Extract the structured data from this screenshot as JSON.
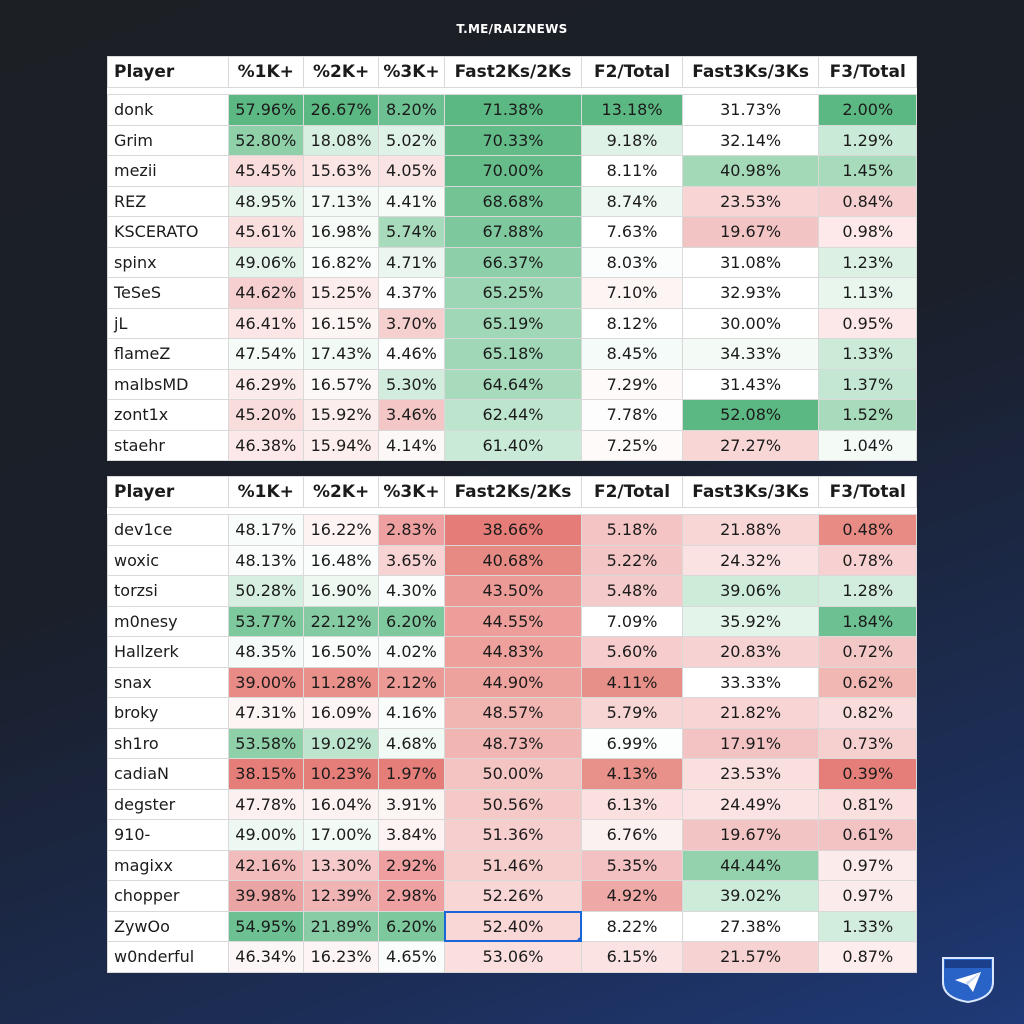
{
  "brand": "T.ME/RAIZNEWS",
  "columns": [
    "Player",
    "%1K+",
    "%2K+",
    "%3K+",
    "Fast2Ks/2Ks",
    "F2/Total",
    "Fast3Ks/3Ks",
    "F3/Total"
  ],
  "top_table": [
    [
      "donk",
      "57.96%",
      "26.67%",
      "8.20%",
      "71.38%",
      "13.18%",
      "31.73%",
      "2.00%"
    ],
    [
      "Grim",
      "52.80%",
      "18.08%",
      "5.02%",
      "70.33%",
      "9.18%",
      "32.14%",
      "1.29%"
    ],
    [
      "mezii",
      "45.45%",
      "15.63%",
      "4.05%",
      "70.00%",
      "8.11%",
      "40.98%",
      "1.45%"
    ],
    [
      "REZ",
      "48.95%",
      "17.13%",
      "4.41%",
      "68.68%",
      "8.74%",
      "23.53%",
      "0.84%"
    ],
    [
      "KSCERATO",
      "45.61%",
      "16.98%",
      "5.74%",
      "67.88%",
      "7.63%",
      "19.67%",
      "0.98%"
    ],
    [
      "spinx",
      "49.06%",
      "16.82%",
      "4.71%",
      "66.37%",
      "8.03%",
      "31.08%",
      "1.23%"
    ],
    [
      "TeSeS",
      "44.62%",
      "15.25%",
      "4.37%",
      "65.25%",
      "7.10%",
      "32.93%",
      "1.13%"
    ],
    [
      "jL",
      "46.41%",
      "16.15%",
      "3.70%",
      "65.19%",
      "8.12%",
      "30.00%",
      "0.95%"
    ],
    [
      "flameZ",
      "47.54%",
      "17.43%",
      "4.46%",
      "65.18%",
      "8.45%",
      "34.33%",
      "1.33%"
    ],
    [
      "malbsMD",
      "46.29%",
      "16.57%",
      "5.30%",
      "64.64%",
      "7.29%",
      "31.43%",
      "1.37%"
    ],
    [
      "zont1x",
      "45.20%",
      "15.92%",
      "3.46%",
      "62.44%",
      "7.78%",
      "52.08%",
      "1.52%"
    ],
    [
      "staehr",
      "46.38%",
      "15.94%",
      "4.14%",
      "61.40%",
      "7.25%",
      "27.27%",
      "1.04%"
    ]
  ],
  "top_colors": [
    [
      "#fff",
      "#5cb883",
      "#5cb883",
      "#6cc091",
      "#5cb883",
      "#5cb883",
      "#ffffff",
      "#5cb883"
    ],
    [
      "#fff",
      "#8fd0a9",
      "#d6efe0",
      "#dff2e7",
      "#63bb88",
      "#dff2e7",
      "#ffffff",
      "#c9ead6"
    ],
    [
      "#fff",
      "#f9dcdc",
      "#fbe5e5",
      "#fae3e3",
      "#66bd8a",
      "#ffffff",
      "#a4d9b8",
      "#a8dbbb"
    ],
    [
      "#fff",
      "#e7f5ec",
      "#f4fbf7",
      "#f6fbf8",
      "#74c395",
      "#eef8f2",
      "#f8d4d4",
      "#f6d0d0"
    ],
    [
      "#fff",
      "#fadfdf",
      "#f6fbf8",
      "#a8dbbb",
      "#7ec89e",
      "#ffffff",
      "#f3c4c4",
      "#fde9e9"
    ],
    [
      "#fff",
      "#e5f4eb",
      "#fafdfb",
      "#eaf6ef",
      "#8ccfa8",
      "#fbfdfc",
      "#ffffff",
      "#dcf1e4"
    ],
    [
      "#fff",
      "#f6d0d0",
      "#fcecec",
      "#fdfefd",
      "#9dd6b4",
      "#fdf4f4",
      "#ffffff",
      "#e8f6ee"
    ],
    [
      "#fff",
      "#fbe5e5",
      "#fdf4f4",
      "#f6cfcf",
      "#a0d7b6",
      "#ffffff",
      "#ffffff",
      "#fce8e8"
    ],
    [
      "#fff",
      "#f5fbf7",
      "#f2faf5",
      "#fdfefd",
      "#a0d7b6",
      "#f5fbf8",
      "#f4fbf7",
      "#cbebd8"
    ],
    [
      "#fff",
      "#fcebeb",
      "#fdf8f8",
      "#d2edde",
      "#a8dbbc",
      "#fefafa",
      "#ffffff",
      "#c3e7d2"
    ],
    [
      "#fff",
      "#f9dcdc",
      "#fceded",
      "#f4c7c7",
      "#bde5cd",
      "#fdfdfd",
      "#5cb883",
      "#a8dbbb"
    ],
    [
      "#fff",
      "#fce8e8",
      "#fdeeee",
      "#fdf8f8",
      "#c9ead6",
      "#fefafa",
      "#f8d6d6",
      "#f4fbf7"
    ]
  ],
  "bottom_table": [
    [
      "dev1ce",
      "48.17%",
      "16.22%",
      "2.83%",
      "38.66%",
      "5.18%",
      "21.88%",
      "0.48%"
    ],
    [
      "woxic",
      "48.13%",
      "16.48%",
      "3.65%",
      "40.68%",
      "5.22%",
      "24.32%",
      "0.78%"
    ],
    [
      "torzsi",
      "50.28%",
      "16.90%",
      "4.30%",
      "43.50%",
      "5.48%",
      "39.06%",
      "1.28%"
    ],
    [
      "m0nesy",
      "53.77%",
      "22.12%",
      "6.20%",
      "44.55%",
      "7.09%",
      "35.92%",
      "1.84%"
    ],
    [
      "Hallzerk",
      "48.35%",
      "16.50%",
      "4.02%",
      "44.83%",
      "5.60%",
      "20.83%",
      "0.72%"
    ],
    [
      "snax",
      "39.00%",
      "11.28%",
      "2.12%",
      "44.90%",
      "4.11%",
      "33.33%",
      "0.62%"
    ],
    [
      "broky",
      "47.31%",
      "16.09%",
      "4.16%",
      "48.57%",
      "5.79%",
      "21.82%",
      "0.82%"
    ],
    [
      "sh1ro",
      "53.58%",
      "19.02%",
      "4.68%",
      "48.73%",
      "6.99%",
      "17.91%",
      "0.73%"
    ],
    [
      "cadiaN",
      "38.15%",
      "10.23%",
      "1.97%",
      "50.00%",
      "4.13%",
      "23.53%",
      "0.39%"
    ],
    [
      "degster",
      "47.78%",
      "16.04%",
      "3.91%",
      "50.56%",
      "6.13%",
      "24.49%",
      "0.81%"
    ],
    [
      "910-",
      "49.00%",
      "17.00%",
      "3.84%",
      "51.36%",
      "6.76%",
      "19.67%",
      "0.61%"
    ],
    [
      "magixx",
      "42.16%",
      "13.30%",
      "2.92%",
      "51.46%",
      "5.35%",
      "44.44%",
      "0.97%"
    ],
    [
      "chopper",
      "39.98%",
      "12.39%",
      "2.98%",
      "52.26%",
      "4.92%",
      "39.02%",
      "0.97%"
    ],
    [
      "ZywOo",
      "54.95%",
      "21.89%",
      "6.20%",
      "52.40%",
      "8.22%",
      "27.38%",
      "1.33%"
    ],
    [
      "w0nderful",
      "46.34%",
      "16.23%",
      "4.65%",
      "53.06%",
      "6.15%",
      "21.57%",
      "0.87%"
    ]
  ],
  "bottom_colors": [
    [
      "#fff",
      "#f8fcfa",
      "#fdf3f3",
      "#ee9f9f",
      "#e57c77",
      "#f4c3c3",
      "#f8d6d6",
      "#e98b85"
    ],
    [
      "#fff",
      "#f9fcfa",
      "#fbfdfc",
      "#f7d3d3",
      "#e88a84",
      "#f4c5c5",
      "#fbe2e2",
      "#f7d1d1"
    ],
    [
      "#fff",
      "#d6efe0",
      "#edf8f1",
      "#fafdfb",
      "#ec9a95",
      "#f5caca",
      "#cdebd9",
      "#d2edde"
    ],
    [
      "#fff",
      "#7ec89e",
      "#84caa2",
      "#7ec89e",
      "#ee9e9a",
      "#ffffff",
      "#e3f4ea",
      "#6cc091"
    ],
    [
      "#fff",
      "#f5fbf8",
      "#fbfdfc",
      "#f9fcfa",
      "#eea19c",
      "#f6cccc",
      "#f7d2d2",
      "#f4c7c7"
    ],
    [
      "#fff",
      "#e88a85",
      "#e9908a",
      "#ec9a95",
      "#eea29d",
      "#e79089",
      "#ffffff",
      "#f1b7b3"
    ],
    [
      "#fff",
      "#fdf4f4",
      "#fdf5f5",
      "#fbfdfc",
      "#f1b5b2",
      "#f8d5d5",
      "#f8d4d4",
      "#f9dddd"
    ],
    [
      "#fff",
      "#8fd0a9",
      "#bde5cd",
      "#f2faf5",
      "#f1b6b3",
      "#fcfefd",
      "#f3c2c2",
      "#f6cfcf"
    ],
    [
      "#fff",
      "#e57e79",
      "#e57e79",
      "#e57e79",
      "#f4c4c2",
      "#e8918a",
      "#fadfdf",
      "#e57e79"
    ],
    [
      "#fff",
      "#fcf0f0",
      "#fdf2f2",
      "#fdf4f4",
      "#f5c9c7",
      "#fbe0e0",
      "#fbe3e3",
      "#fadfdf"
    ],
    [
      "#fff",
      "#eef8f2",
      "#f2faf5",
      "#fdf3f3",
      "#f6cecd",
      "#fcf1f1",
      "#f3c4c4",
      "#f3c3c3"
    ],
    [
      "#fff",
      "#f3bcbc",
      "#f6caca",
      "#ef9f9f",
      "#f6cfcd",
      "#f3c1c1",
      "#94d2ad",
      "#fcebeb"
    ],
    [
      "#fff",
      "#eba4a4",
      "#f1b4b4",
      "#efa1a1",
      "#f8d6d5",
      "#eea8a5",
      "#cdebd9",
      "#fcebeb"
    ],
    [
      "#fff",
      "#6cc091",
      "#88cca5",
      "#7ec89e",
      "#f8d7d6",
      "#ffffff",
      "#ffffff",
      "#d2edde"
    ],
    [
      "#fff",
      "#fdf6f6",
      "#fdf5f5",
      "#fafdfb",
      "#fadfde",
      "#fbe3e3",
      "#f7d2d2",
      "#fdeded"
    ]
  ],
  "selected_cell": {
    "table": "bottom",
    "row": 13,
    "col": 4
  },
  "logo_icon": "paper-plane-shield-logo"
}
